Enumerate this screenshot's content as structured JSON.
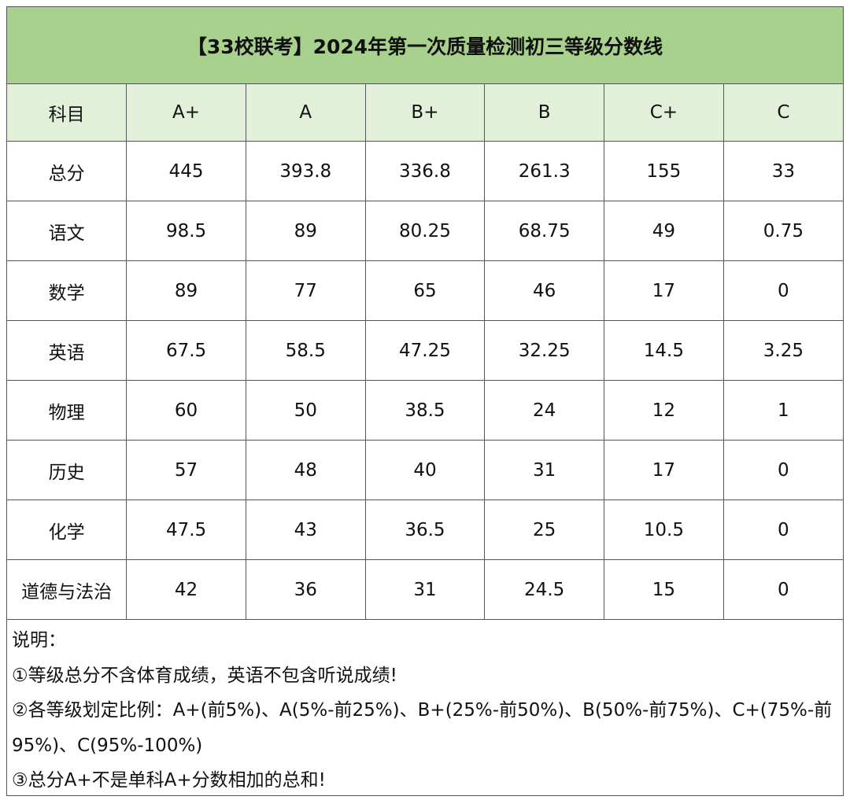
{
  "title": "【33校联考】2024年第一次质量检测初三等级分数线",
  "table": {
    "header": [
      "科目",
      "A+",
      "A",
      "B+",
      "B",
      "C+",
      "C"
    ],
    "rows": [
      [
        "总分",
        445,
        393.8,
        336.8,
        261.3,
        155,
        33
      ],
      [
        "语文",
        98.5,
        89,
        80.25,
        68.75,
        49,
        0.75
      ],
      [
        "数学",
        89,
        77,
        65,
        46,
        17,
        0
      ],
      [
        "英语",
        67.5,
        58.5,
        47.25,
        32.25,
        14.5,
        3.25
      ],
      [
        "物理",
        60,
        50,
        38.5,
        24,
        12,
        1
      ],
      [
        "历史",
        57,
        48,
        40,
        31,
        17,
        0
      ],
      [
        "化学",
        47.5,
        43,
        36.5,
        25,
        10.5,
        0
      ],
      [
        "道德与法治",
        42,
        36,
        31,
        24.5,
        15,
        0
      ]
    ]
  },
  "notes": {
    "heading": "说明：",
    "items": [
      "①等级总分不含体育成绩，英语不包含听说成绩!",
      "②各等级划定比例：A+(前5%)、A(5%-前25%)、B+(25%-前50%)、B(50%-前75%)、C+(75%-前95%)、C(95%-100%)",
      "③总分A+不是单科A+分数相加的总和!"
    ]
  }
}
